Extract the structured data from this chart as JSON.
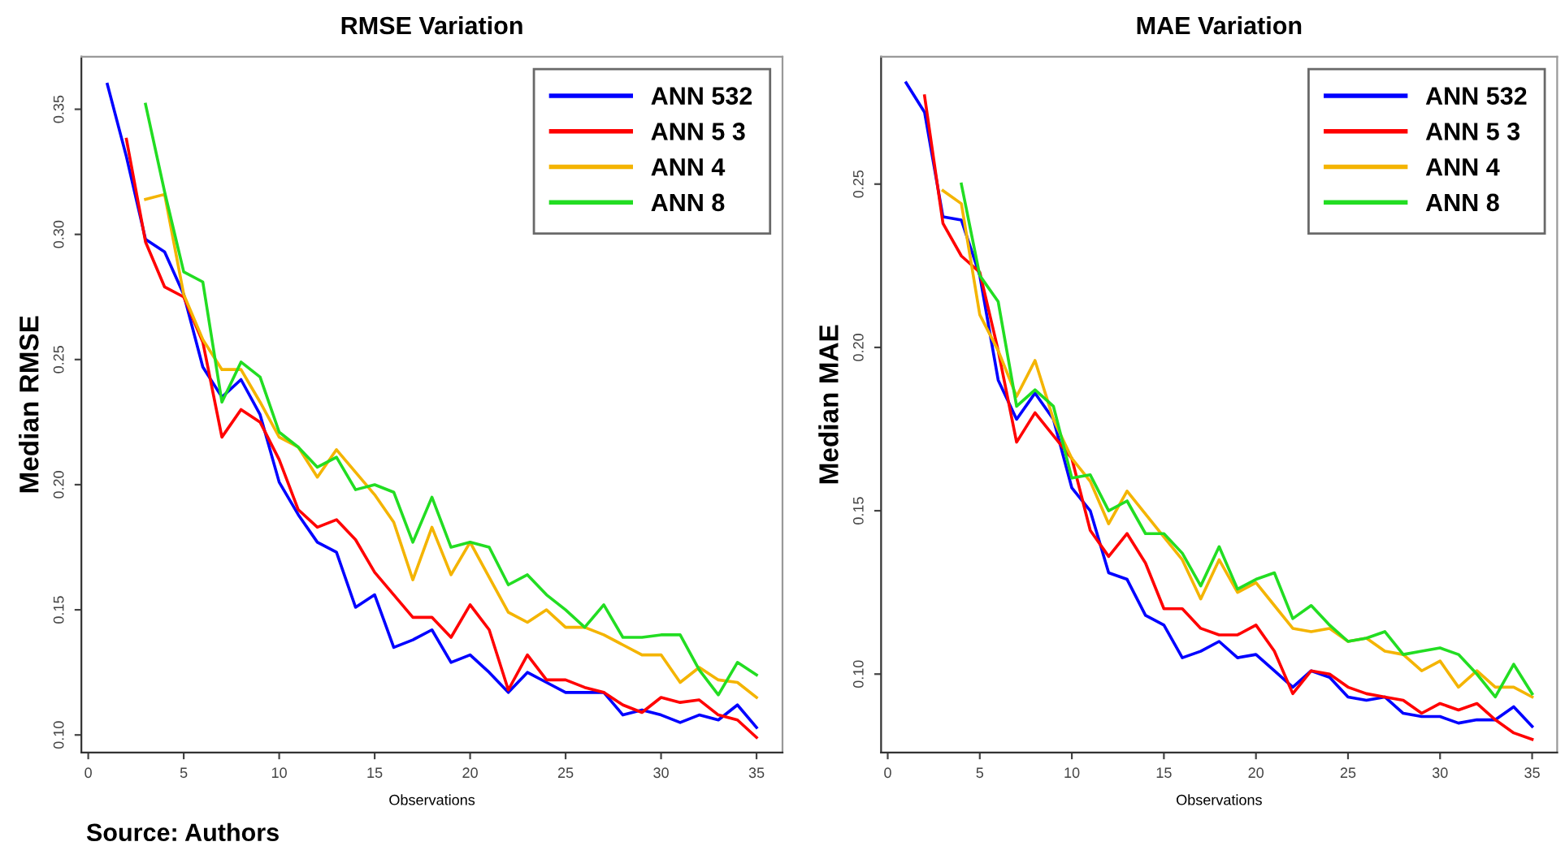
{
  "chart_data": [
    {
      "type": "line",
      "title": "RMSE Variation",
      "xlabel": "Observations",
      "ylabel": "Median RMSE",
      "legend": "top right",
      "grid": false,
      "line_style": "solid",
      "marker": "none",
      "x": [
        1,
        2,
        3,
        4,
        5,
        6,
        7,
        8,
        9,
        10,
        11,
        12,
        13,
        14,
        15,
        16,
        17,
        18,
        19,
        20,
        21,
        22,
        23,
        24,
        25,
        26,
        27,
        28,
        29,
        30,
        31,
        32,
        33,
        34,
        35
      ],
      "xlim": [
        -0.36,
        36.36
      ],
      "ylim": [
        0.093,
        0.371
      ],
      "xticks": [
        0,
        5,
        10,
        15,
        20,
        25,
        30,
        35
      ],
      "yticks": [
        {
          "value": 0.1,
          "label": "0.10"
        },
        {
          "value": 0.15,
          "label": "0.15"
        },
        {
          "value": 0.2,
          "label": "0.20"
        },
        {
          "value": 0.25,
          "label": "0.25"
        },
        {
          "value": 0.3,
          "label": "0.30"
        },
        {
          "value": 0.35,
          "label": "0.35"
        }
      ],
      "series": [
        {
          "name": "ANN 532",
          "color": "#0000ff",
          "values": [
            0.36,
            0.331,
            0.298,
            0.293,
            0.276,
            0.247,
            0.235,
            0.242,
            0.228,
            0.201,
            0.188,
            0.177,
            0.173,
            0.151,
            0.156,
            0.135,
            0.138,
            0.142,
            0.129,
            0.132,
            0.125,
            0.117,
            0.125,
            0.121,
            0.117,
            0.117,
            0.117,
            0.108,
            0.11,
            0.108,
            0.105,
            0.108,
            0.106,
            0.112,
            0.103
          ]
        },
        {
          "name": "ANN 5 3",
          "color": "#ff0000",
          "values": [
            null,
            0.338,
            0.297,
            0.279,
            0.275,
            0.257,
            0.219,
            0.23,
            0.225,
            0.21,
            0.19,
            0.183,
            0.186,
            0.178,
            0.165,
            0.156,
            0.147,
            0.147,
            0.139,
            0.152,
            0.142,
            0.118,
            0.132,
            0.122,
            0.122,
            0.119,
            0.117,
            0.112,
            0.109,
            0.115,
            0.113,
            0.114,
            0.108,
            0.106,
            0.099
          ]
        },
        {
          "name": "ANN 4",
          "color": "#f4b400",
          "values": [
            null,
            null,
            0.314,
            0.316,
            0.276,
            0.258,
            0.246,
            0.246,
            0.233,
            0.219,
            0.215,
            0.203,
            0.214,
            0.205,
            0.196,
            0.185,
            0.162,
            0.183,
            0.164,
            0.177,
            0.163,
            0.149,
            0.145,
            0.15,
            0.143,
            0.143,
            0.14,
            0.136,
            0.132,
            0.132,
            0.121,
            0.127,
            0.122,
            0.121,
            0.115
          ]
        },
        {
          "name": "ANN 8",
          "color": "#22dd22",
          "values": [
            null,
            null,
            0.352,
            0.317,
            0.285,
            0.281,
            0.233,
            0.249,
            0.243,
            0.221,
            0.215,
            0.207,
            0.211,
            0.198,
            0.2,
            0.197,
            0.177,
            0.195,
            0.175,
            0.177,
            0.175,
            0.16,
            0.164,
            0.156,
            0.15,
            0.143,
            0.152,
            0.139,
            0.139,
            0.14,
            0.14,
            0.126,
            0.116,
            0.129,
            0.124
          ]
        }
      ],
      "annotations": [
        "Source: Authors"
      ]
    },
    {
      "type": "line",
      "title": "MAE Variation",
      "xlabel": "Observations",
      "ylabel": "Median MAE",
      "legend": "top right",
      "grid": false,
      "line_style": "solid",
      "marker": "none",
      "x": [
        1,
        2,
        3,
        4,
        5,
        6,
        7,
        8,
        9,
        10,
        11,
        12,
        13,
        14,
        15,
        16,
        17,
        18,
        19,
        20,
        21,
        22,
        23,
        24,
        25,
        26,
        27,
        28,
        29,
        30,
        31,
        32,
        33,
        34,
        35
      ],
      "xlim": [
        -0.36,
        36.36
      ],
      "ylim": [
        0.076,
        0.289
      ],
      "xticks": [
        0,
        5,
        10,
        15,
        20,
        25,
        30,
        35
      ],
      "yticks": [
        {
          "value": 0.1,
          "label": "0.10"
        },
        {
          "value": 0.15,
          "label": "0.15"
        },
        {
          "value": 0.2,
          "label": "0.20"
        },
        {
          "value": 0.25,
          "label": "0.25"
        }
      ],
      "series": [
        {
          "name": "ANN 532",
          "color": "#0000ff",
          "values": [
            0.281,
            0.272,
            0.24,
            0.239,
            0.222,
            0.19,
            0.178,
            0.186,
            0.178,
            0.157,
            0.15,
            0.131,
            0.129,
            0.118,
            0.115,
            0.105,
            0.107,
            0.11,
            0.105,
            0.106,
            0.101,
            0.096,
            0.101,
            0.099,
            0.093,
            0.092,
            0.093,
            0.088,
            0.087,
            0.087,
            0.085,
            0.086,
            0.086,
            0.09,
            0.084
          ]
        },
        {
          "name": "ANN 5 3",
          "color": "#ff0000",
          "values": [
            null,
            0.277,
            0.238,
            0.228,
            0.223,
            0.199,
            0.171,
            0.18,
            0.173,
            0.166,
            0.144,
            0.136,
            0.143,
            0.134,
            0.12,
            0.12,
            0.114,
            0.112,
            0.112,
            0.115,
            0.107,
            0.094,
            0.101,
            0.1,
            0.096,
            0.094,
            0.093,
            0.092,
            0.088,
            0.091,
            0.089,
            0.091,
            0.086,
            0.082,
            0.08
          ]
        },
        {
          "name": "ANN 4",
          "color": "#f4b400",
          "values": [
            null,
            null,
            0.248,
            0.244,
            0.21,
            0.199,
            0.185,
            0.196,
            0.178,
            0.166,
            0.159,
            0.146,
            0.156,
            0.149,
            0.142,
            0.135,
            0.123,
            0.135,
            0.125,
            0.128,
            0.121,
            0.114,
            0.113,
            0.114,
            0.11,
            0.111,
            0.107,
            0.106,
            0.101,
            0.104,
            0.096,
            0.101,
            0.096,
            0.096,
            0.093
          ]
        },
        {
          "name": "ANN 8",
          "color": "#22dd22",
          "values": [
            null,
            null,
            null,
            0.25,
            0.222,
            0.214,
            0.182,
            0.187,
            0.182,
            0.16,
            0.161,
            0.15,
            0.153,
            0.143,
            0.143,
            0.137,
            0.127,
            0.139,
            0.126,
            0.129,
            0.131,
            0.117,
            0.121,
            0.115,
            0.11,
            0.111,
            0.113,
            0.106,
            0.107,
            0.108,
            0.106,
            0.1,
            0.093,
            0.103,
            0.094
          ]
        }
      ]
    }
  ]
}
